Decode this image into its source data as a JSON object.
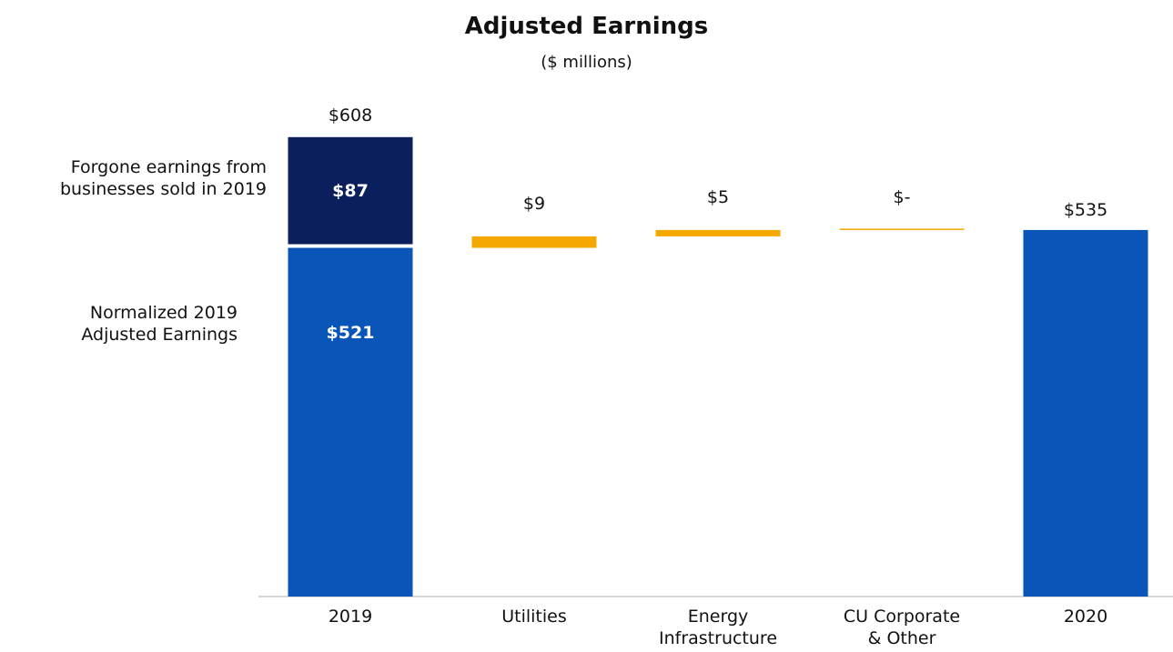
{
  "chart_data": {
    "type": "waterfall",
    "title": "Adjusted Earnings",
    "subtitle": "($ millions)",
    "categories": [
      "2019",
      "Utilities",
      "Energy\nInfrastructure",
      "CU Corporate\n& Other",
      "2020"
    ],
    "values": [
      521,
      9,
      5,
      0,
      535
    ],
    "value_labels": [
      "$521",
      "$9",
      "$5",
      "$-",
      "$535"
    ],
    "measures": [
      "absolute",
      "relative",
      "relative",
      "relative",
      "absolute"
    ],
    "colors": [
      "#0a55b8",
      "#f5a800",
      "#f5a800",
      "#f5a800",
      "#0a55b8"
    ],
    "forgone": {
      "label": "Forgone earnings from\nbusinesses sold in 2019",
      "value": 87,
      "value_label": "$87",
      "color": "#0b1f5c"
    },
    "normalized_label": "Normalized 2019\nAdjusted Earnings",
    "total_2019": {
      "value": 608,
      "label": "$608"
    },
    "ylim": [
      247,
      640
    ]
  }
}
